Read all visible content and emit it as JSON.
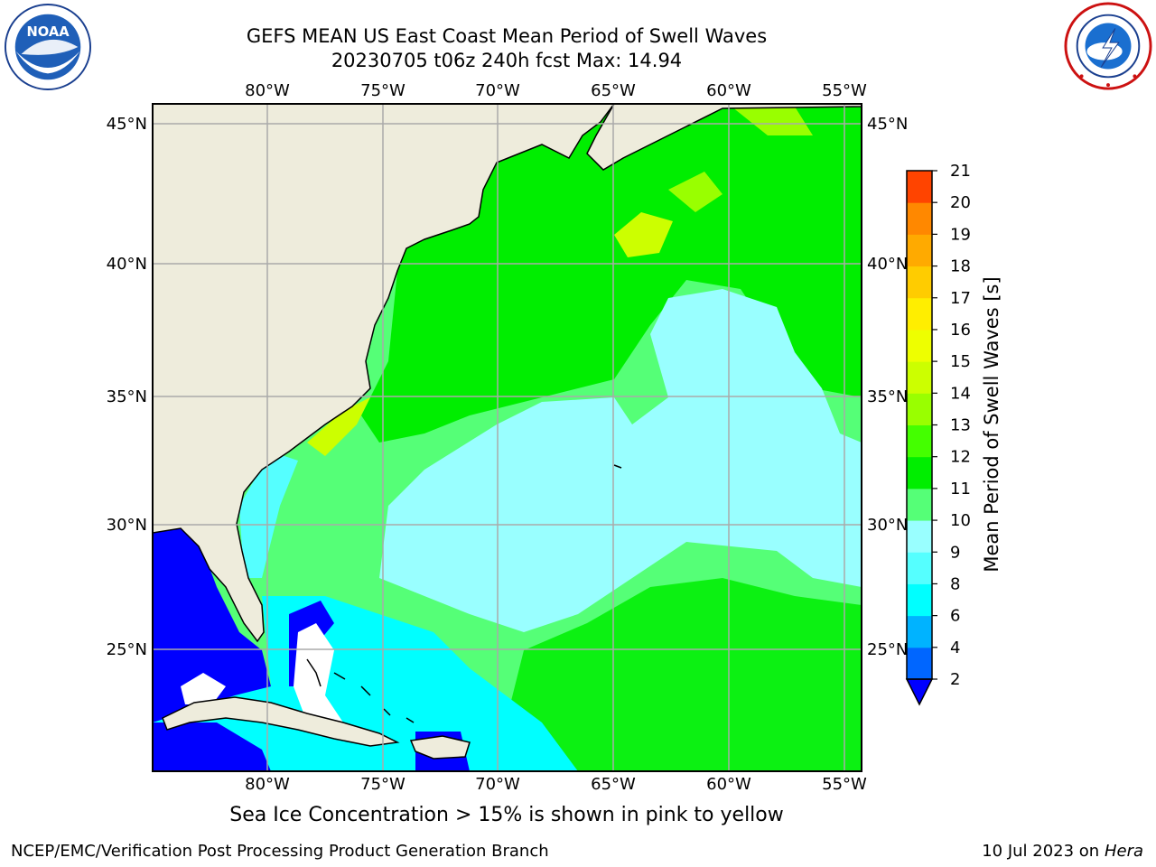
{
  "header": {
    "title_line1": "GEFS MEAN US East Coast Mean Period of Swell Waves",
    "title_line2": "20230705 t06z 240h fcst   Max: 14.94"
  },
  "logos": {
    "left": {
      "icon": "noaa-logo",
      "text": "NOAA"
    },
    "right": {
      "icon": "national-weather-service-logo"
    }
  },
  "map": {
    "projection": "lat-lon",
    "lon_ticks": [
      "80°W",
      "75°W",
      "70°W",
      "65°W",
      "60°W",
      "55°W"
    ],
    "lat_ticks": [
      "45°N",
      "40°N",
      "35°N",
      "30°N",
      "25°N"
    ],
    "grid": true,
    "colors": {
      "land": "#eeecdc",
      "ocean_low": "#0000ff",
      "cyan": "#00ffff",
      "light_cyan": "#99ffff",
      "light_green": "#55ff77",
      "green": "#00ee00",
      "yellow_green": "#ccff00"
    }
  },
  "colorbar": {
    "label": "Mean Period of Swell Waves [s]",
    "ticks": [
      "2",
      "4",
      "6",
      "8",
      "9",
      "10",
      "11",
      "12",
      "13",
      "14",
      "15",
      "16",
      "17",
      "18",
      "19",
      "20",
      "21"
    ],
    "colors": [
      "#0066ff",
      "#00b3ff",
      "#00ffff",
      "#55ffff",
      "#99ffff",
      "#55ff77",
      "#00ee00",
      "#44ff00",
      "#99ff00",
      "#ccff00",
      "#eeff00",
      "#ffee00",
      "#ffcc00",
      "#ffaa00",
      "#ff8800",
      "#ff4400",
      "#ff2200",
      "#ff0000"
    ],
    "extend_color": "#0000ff"
  },
  "footer": {
    "ice_note": "Sea Ice Concentration > 15% is shown in pink to yellow",
    "credit": "NCEP/EMC/Verification Post Processing Product Generation Branch",
    "date": "10 Jul 2023 on",
    "machine": "Hera"
  }
}
